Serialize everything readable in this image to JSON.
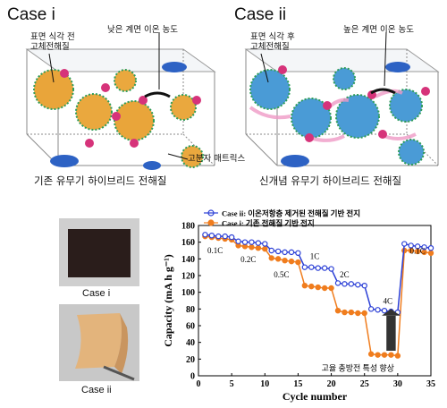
{
  "top_panels": [
    {
      "title": "Case i",
      "label_surface": "표면 식각 전\n고체전해질",
      "label_interface": "낮은 계면 이온 농도",
      "label_matrix": "고분자 매트릭스",
      "caption": "기존 유무기 하이브리드 전해질",
      "particle_color": "#e8a53a"
    },
    {
      "title": "Case ii",
      "label_surface": "표면 식각 후\n고체전해질",
      "label_interface": "높은 계면 이온 농도",
      "caption": "신개념 유무기 하이브리드 전해질",
      "particle_color": "#4a9bd6"
    }
  ],
  "ion_symbol": "Li",
  "photos": [
    {
      "caption": "Case i",
      "color": "#2a1d1b"
    },
    {
      "caption": "Case ii",
      "color": "#e3b47c"
    }
  ],
  "chart_data": {
    "type": "line",
    "xlabel": "Cycle number",
    "ylabel": "Capacity (mA h g⁻¹)",
    "xlim": [
      0,
      35
    ],
    "ylim": [
      0,
      180
    ],
    "xticks": [
      0,
      5,
      10,
      15,
      20,
      25,
      30,
      35
    ],
    "yticks": [
      0,
      20,
      40,
      60,
      80,
      100,
      120,
      140,
      160,
      180
    ],
    "legend_position": "top",
    "series": [
      {
        "name": "이온저항층 제거된 전해질 기반 전지",
        "legend_prefix": "Case ii:",
        "color": "#2b3fd6",
        "marker": "open-circle",
        "x": [
          1,
          2,
          3,
          4,
          5,
          6,
          7,
          8,
          9,
          10,
          11,
          12,
          13,
          14,
          15,
          16,
          17,
          18,
          19,
          20,
          21,
          22,
          23,
          24,
          25,
          26,
          27,
          28,
          29,
          30,
          31,
          32,
          33,
          34,
          35
        ],
        "y": [
          169,
          168,
          167,
          167,
          166,
          161,
          160,
          160,
          159,
          158,
          150,
          149,
          148,
          148,
          147,
          130,
          130,
          129,
          129,
          128,
          111,
          110,
          110,
          109,
          108,
          80,
          79,
          78,
          77,
          76,
          158,
          156,
          155,
          154,
          153
        ]
      },
      {
        "name": "기존 전해질 기반 전지",
        "legend_prefix": "Case i:",
        "color": "#f07d1e",
        "marker": "filled-circle",
        "x": [
          1,
          2,
          3,
          4,
          5,
          6,
          7,
          8,
          9,
          10,
          11,
          12,
          13,
          14,
          15,
          16,
          17,
          18,
          19,
          20,
          21,
          22,
          23,
          24,
          25,
          26,
          27,
          28,
          29,
          30,
          31,
          32,
          33,
          34,
          35
        ],
        "y": [
          167,
          166,
          165,
          164,
          163,
          156,
          155,
          154,
          153,
          152,
          141,
          140,
          138,
          137,
          136,
          108,
          107,
          106,
          105,
          105,
          78,
          76,
          76,
          75,
          75,
          26,
          25,
          25,
          25,
          24,
          150,
          150,
          149,
          148,
          147
        ]
      }
    ],
    "rate_labels": [
      {
        "text": "0.1C",
        "x": 2.5,
        "y": 147
      },
      {
        "text": "0.2C",
        "x": 7.5,
        "y": 136
      },
      {
        "text": "0.5C",
        "x": 12.5,
        "y": 118
      },
      {
        "text": "1C",
        "x": 17.5,
        "y": 140
      },
      {
        "text": "2C",
        "x": 22,
        "y": 118
      },
      {
        "text": "4C",
        "x": 28.5,
        "y": 86
      },
      {
        "text": "0.1C",
        "x": 33,
        "y": 146
      }
    ],
    "annotation": "고율 충방전 특성 향상"
  }
}
